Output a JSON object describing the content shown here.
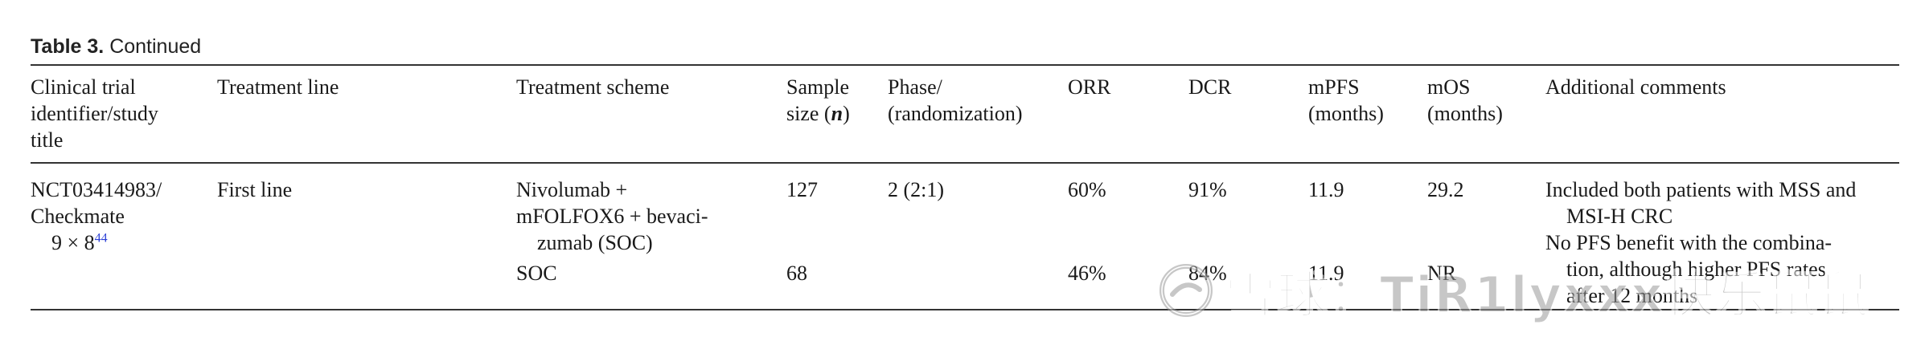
{
  "caption": {
    "label": "Table 3.",
    "text": " Continued"
  },
  "headers": {
    "trial": [
      "Clinical trial",
      "identifier/study",
      "title"
    ],
    "line": "Treatment line",
    "scheme": "Treatment scheme",
    "sample": [
      "Sample",
      "size (n)"
    ],
    "phase": [
      "Phase/",
      "(randomization)"
    ],
    "orr": "ORR",
    "dcr": "DCR",
    "mpfs": [
      "mPFS",
      "(months)"
    ],
    "mos": [
      "mOS",
      "(months)"
    ],
    "comments": "Additional comments"
  },
  "rows": [
    {
      "trial": [
        "NCT03414983/",
        "Checkmate",
        "9 × 8"
      ],
      "trial_ref": "44",
      "line": "First line",
      "scheme": [
        "Nivolumab +",
        "mFOLFOX6 + bevaci-",
        "zumab (SOC)"
      ],
      "sample": "127",
      "phase": "2 (2:1)",
      "orr": "60%",
      "dcr": "91%",
      "mpfs": "11.9",
      "mos": "29.2",
      "comments": [
        "Included both patients with MSS and",
        "MSI-H CRC",
        "No PFS benefit with the combina-",
        "tion, although higher PFS rates",
        "after 12 months"
      ]
    },
    {
      "scheme": "SOC",
      "sample": "68",
      "orr": "46%",
      "dcr": "84%",
      "mpfs": "11.9",
      "mos": "NR"
    }
  ],
  "watermark": {
    "text": "雪球：TiR1lyxxx快乐鼠鼠"
  }
}
